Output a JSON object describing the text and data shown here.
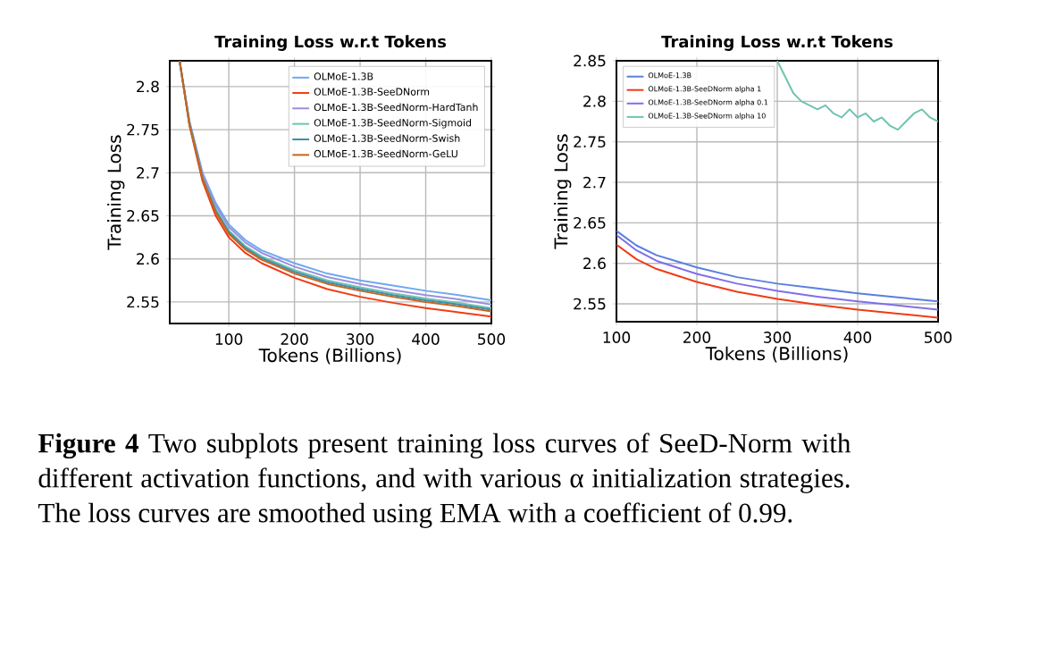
{
  "chart_data": [
    {
      "type": "line",
      "title": "Training Loss w.r.t Tokens",
      "xlabel": "Tokens (Billions)",
      "ylabel": "Training Loss",
      "xlim": [
        10,
        500
      ],
      "ylim": [
        2.525,
        2.83
      ],
      "xticks": [
        100,
        200,
        300,
        400,
        500
      ],
      "yticks": [
        2.55,
        2.6,
        2.65,
        2.7,
        2.75,
        2.8
      ],
      "grid": true,
      "legend": "top right",
      "line_style": "solid",
      "annotations": [
        "**Figure 4** Two subplots present training loss curves of SeeD-Norm with different activation functions, and with various α initialization strategies. The loss curves are smoothed using EMA with a coefficient of 0.99."
      ],
      "series": [
        {
          "name": "OLMoE-1.3B",
          "color": "#6fa8f0",
          "x": [
            25,
            40,
            60,
            80,
            100,
            125,
            150,
            200,
            250,
            300,
            350,
            400,
            450,
            500
          ],
          "values": [
            2.83,
            2.76,
            2.7,
            2.665,
            2.64,
            2.622,
            2.61,
            2.595,
            2.583,
            2.575,
            2.569,
            2.563,
            2.558,
            2.552
          ]
        },
        {
          "name": "OLMoE-1.3B-SeeDNorm",
          "color": "#f03c14",
          "x": [
            25,
            40,
            60,
            80,
            100,
            125,
            150,
            200,
            250,
            300,
            350,
            400,
            450,
            500
          ],
          "values": [
            2.83,
            2.755,
            2.69,
            2.65,
            2.625,
            2.607,
            2.595,
            2.578,
            2.565,
            2.556,
            2.549,
            2.543,
            2.538,
            2.533
          ]
        },
        {
          "name": "OLMoE-1.3B-SeedNorm-HardTanh",
          "color": "#9b8fe0",
          "x": [
            25,
            40,
            60,
            80,
            100,
            125,
            150,
            200,
            250,
            300,
            350,
            400,
            450,
            500
          ],
          "values": [
            2.83,
            2.759,
            2.698,
            2.662,
            2.637,
            2.619,
            2.607,
            2.591,
            2.579,
            2.571,
            2.564,
            2.558,
            2.553,
            2.547
          ]
        },
        {
          "name": "OLMoE-1.3B-SeedNorm-Sigmoid",
          "color": "#6fc4b0",
          "x": [
            25,
            40,
            60,
            80,
            100,
            125,
            150,
            200,
            250,
            300,
            350,
            400,
            450,
            500
          ],
          "values": [
            2.83,
            2.758,
            2.695,
            2.658,
            2.633,
            2.615,
            2.603,
            2.587,
            2.575,
            2.567,
            2.56,
            2.554,
            2.549,
            2.543
          ]
        },
        {
          "name": "OLMoE-1.3B-SeedNorm-Swish",
          "color": "#3a8fb0",
          "x": [
            25,
            40,
            60,
            80,
            100,
            125,
            150,
            200,
            250,
            300,
            350,
            400,
            450,
            500
          ],
          "values": [
            2.83,
            2.757,
            2.694,
            2.656,
            2.631,
            2.613,
            2.601,
            2.585,
            2.573,
            2.565,
            2.558,
            2.552,
            2.547,
            2.541
          ]
        },
        {
          "name": "OLMoE-1.3B-SeedNorm-GeLU",
          "color": "#c8641e",
          "x": [
            25,
            40,
            60,
            80,
            100,
            125,
            150,
            200,
            250,
            300,
            350,
            400,
            450,
            500
          ],
          "values": [
            2.83,
            2.756,
            2.693,
            2.654,
            2.629,
            2.611,
            2.599,
            2.583,
            2.571,
            2.563,
            2.556,
            2.55,
            2.545,
            2.539
          ]
        }
      ]
    },
    {
      "type": "line",
      "title": "Training Loss w.r.t Tokens",
      "xlabel": "Tokens (Billions)",
      "ylabel": "Training Loss",
      "xlim": [
        100,
        500
      ],
      "ylim": [
        2.528,
        2.85
      ],
      "xticks": [
        100,
        200,
        300,
        400,
        500
      ],
      "yticks": [
        2.55,
        2.6,
        2.65,
        2.7,
        2.75,
        2.8,
        2.85
      ],
      "grid": true,
      "legend": "top left",
      "line_style": "solid",
      "series": [
        {
          "name": "OLMoE-1.3B",
          "color": "#5a7fe0",
          "x": [
            100,
            125,
            150,
            200,
            250,
            300,
            350,
            400,
            450,
            500
          ],
          "values": [
            2.64,
            2.622,
            2.61,
            2.595,
            2.583,
            2.575,
            2.569,
            2.563,
            2.558,
            2.553
          ]
        },
        {
          "name": "OLMoE-1.3B-SeeDNorm alpha 1",
          "color": "#f03c14",
          "x": [
            100,
            125,
            150,
            200,
            250,
            300,
            350,
            400,
            450,
            500
          ],
          "values": [
            2.623,
            2.605,
            2.593,
            2.577,
            2.565,
            2.556,
            2.549,
            2.543,
            2.538,
            2.533
          ]
        },
        {
          "name": "OLMoE-1.3B-SeeDNorm alpha 0.1",
          "color": "#7f6fe8",
          "x": [
            100,
            125,
            150,
            200,
            250,
            300,
            350,
            400,
            450,
            500
          ],
          "values": [
            2.635,
            2.616,
            2.603,
            2.587,
            2.575,
            2.566,
            2.559,
            2.553,
            2.548,
            2.543
          ]
        },
        {
          "name": "OLMoE-1.3B-SeeDNorm alpha 10",
          "color": "#6fc4b0",
          "x": [
            300,
            310,
            320,
            330,
            340,
            350,
            360,
            370,
            380,
            390,
            400,
            410,
            420,
            430,
            440,
            450,
            460,
            470,
            480,
            490,
            500
          ],
          "values": [
            2.85,
            2.83,
            2.81,
            2.8,
            2.795,
            2.79,
            2.795,
            2.785,
            2.78,
            2.79,
            2.78,
            2.785,
            2.775,
            2.78,
            2.77,
            2.765,
            2.775,
            2.785,
            2.79,
            2.78,
            2.775
          ]
        }
      ]
    }
  ]
}
